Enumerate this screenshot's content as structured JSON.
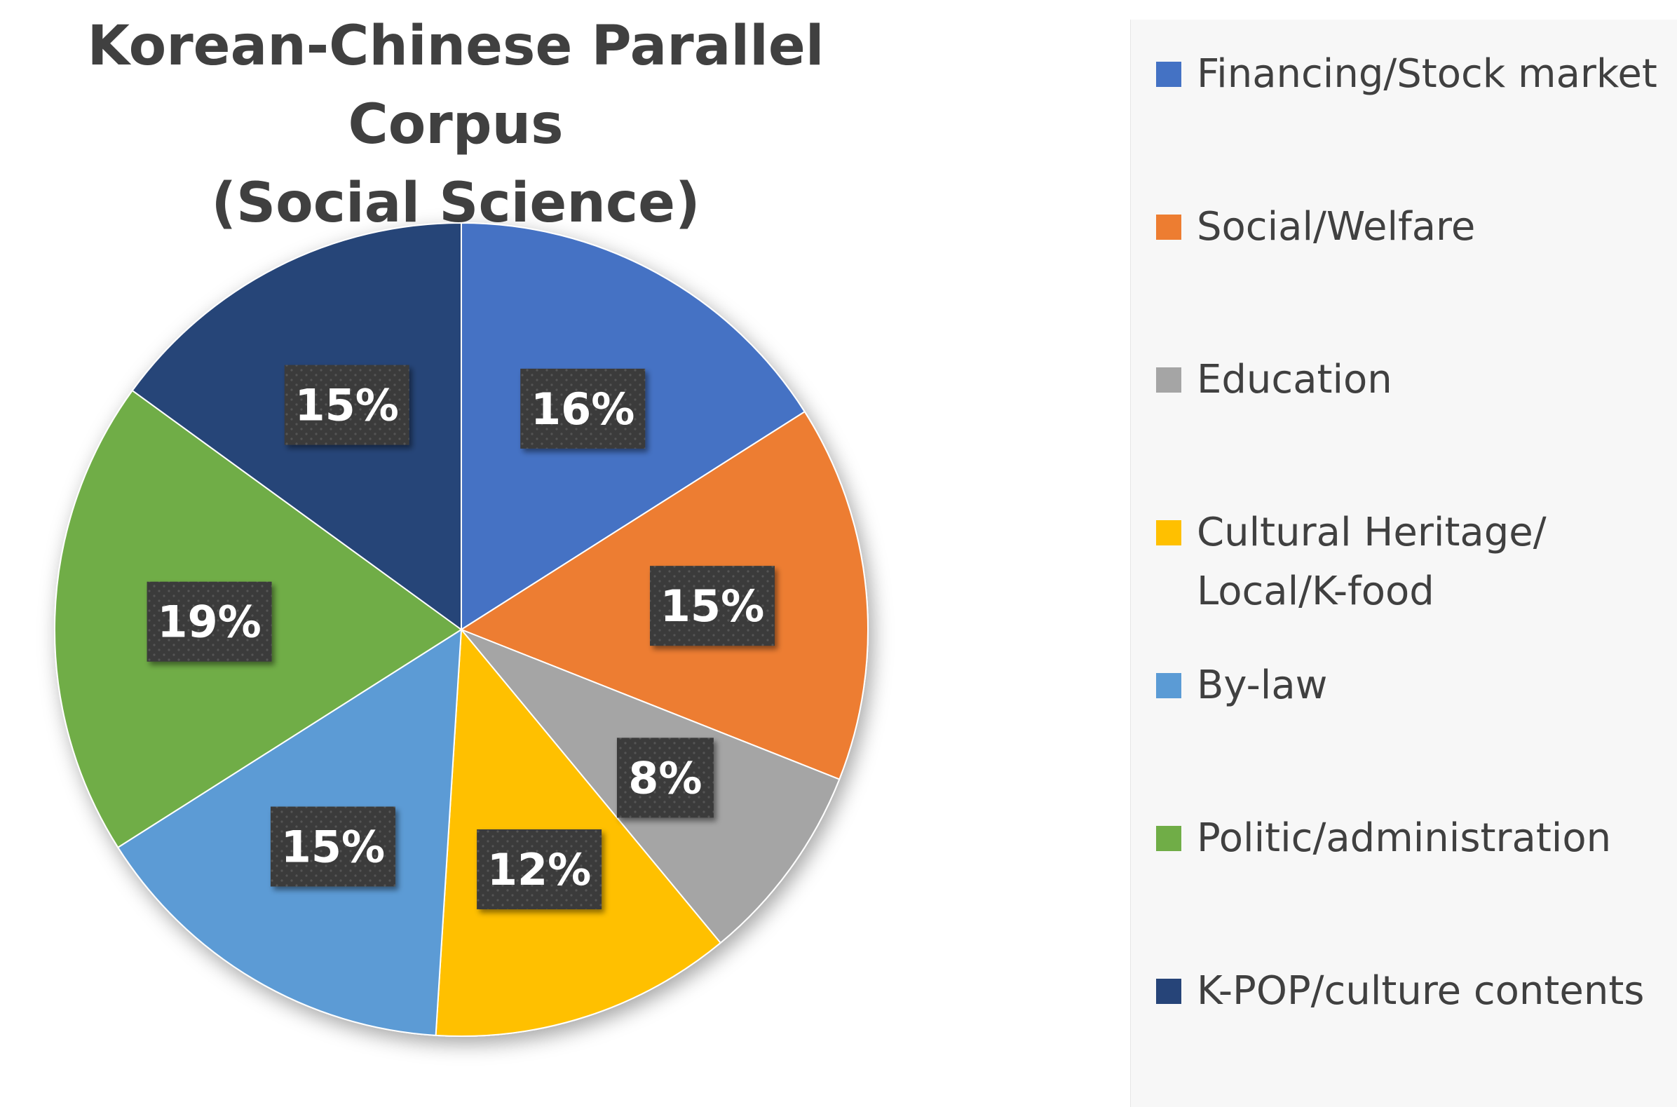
{
  "chart_data": {
    "type": "pie",
    "title": "Korean-Chinese Parallel Corpus (Social Science)",
    "title_lines": [
      "Korean-Chinese Parallel Corpus",
      "(Social Science)"
    ],
    "legend_position": "right",
    "slices": [
      {
        "name": "Financing/Stock market",
        "value": 16,
        "label": "16%",
        "color": "#4472C4"
      },
      {
        "name": "Social/Welfare",
        "value": 15,
        "label": "15%",
        "color": "#ED7D31"
      },
      {
        "name": "Education",
        "value": 8,
        "label": "8%",
        "color": "#A5A5A5"
      },
      {
        "name": "Cultural Heritage/\nLocal/K-food",
        "value": 12,
        "label": "12%",
        "color": "#FFC000"
      },
      {
        "name": "By-law",
        "value": 15,
        "label": "15%",
        "color": "#5B9BD5"
      },
      {
        "name": "Politic/administration",
        "value": 19,
        "label": "19%",
        "color": "#70AD47"
      },
      {
        "name": "K-POP/culture contents",
        "value": 15,
        "label": "15%",
        "color": "#264478"
      }
    ]
  }
}
